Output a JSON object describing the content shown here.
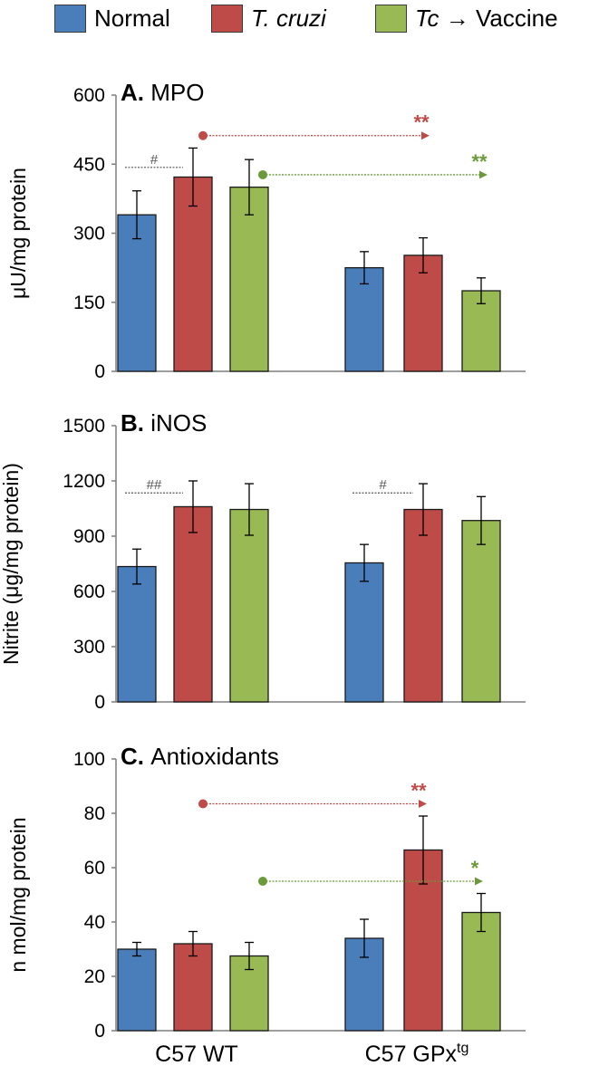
{
  "legend": [
    {
      "label": "Normal",
      "color": "#4a7ebb",
      "italic": false
    },
    {
      "label": "T. cruzi",
      "color": "#be4b48",
      "italic": true
    },
    {
      "label_italic": "Tc",
      "label_arrow": "→",
      "label_rest": "Vaccine",
      "color": "#98b954"
    }
  ],
  "groups": [
    "C57 WT",
    "C57 GPx"
  ],
  "group_superscript": "tg",
  "chart_data": [
    {
      "type": "bar",
      "panel_letter": "A.",
      "title": "MPO",
      "ylabel": "μU/mg protein",
      "ylim": [
        0,
        600
      ],
      "yticks": [
        0,
        150,
        300,
        450,
        600
      ],
      "grid": false,
      "categories": [
        "C57 WT",
        "C57 GPx"
      ],
      "series": [
        {
          "name": "Normal",
          "color": "#4a7ebb",
          "values": [
            340,
            225
          ],
          "errors": [
            52,
            35
          ]
        },
        {
          "name": "T. cruzi",
          "color": "#be4b48",
          "values": [
            422,
            252
          ],
          "errors": [
            63,
            38
          ]
        },
        {
          "name": "Tc → Vaccine",
          "color": "#98b954",
          "values": [
            400,
            175
          ],
          "errors": [
            60,
            28
          ]
        }
      ],
      "annotations": [
        {
          "label": "#",
          "type": "bracket",
          "from": {
            "series": 0,
            "group": 0
          },
          "to": {
            "series": 1,
            "group": 0
          },
          "y": 443,
          "color": "#555555"
        },
        {
          "label": "**",
          "type": "arrow",
          "from": {
            "series": 1,
            "group": 0
          },
          "to": {
            "series": 1,
            "group": 1
          },
          "y": 512,
          "color": "#be4b48"
        },
        {
          "label": "**",
          "type": "arrow",
          "from": {
            "series": 2,
            "group": 0
          },
          "to": {
            "series": 2,
            "group": 1
          },
          "y": 427,
          "color": "#6c9a3a"
        }
      ]
    },
    {
      "type": "bar",
      "panel_letter": "B.",
      "title": "iNOS",
      "ylabel": "Nitrite (μg/mg protein)",
      "ylim": [
        0,
        1500
      ],
      "yticks": [
        0,
        300,
        600,
        900,
        1200,
        1500
      ],
      "grid": false,
      "categories": [
        "C57 WT",
        "C57 GPx"
      ],
      "series": [
        {
          "name": "Normal",
          "color": "#4a7ebb",
          "values": [
            735,
            755
          ],
          "errors": [
            95,
            100
          ]
        },
        {
          "name": "T. cruzi",
          "color": "#be4b48",
          "values": [
            1060,
            1045
          ],
          "errors": [
            140,
            140
          ]
        },
        {
          "name": "Tc → Vaccine",
          "color": "#98b954",
          "values": [
            1045,
            985
          ],
          "errors": [
            140,
            130
          ]
        }
      ],
      "annotations": [
        {
          "label": "##",
          "type": "bracket",
          "from": {
            "series": 0,
            "group": 0
          },
          "to": {
            "series": 1,
            "group": 0
          },
          "y": 1135,
          "color": "#555555"
        },
        {
          "label": "#",
          "type": "bracket",
          "from": {
            "series": 0,
            "group": 1
          },
          "to": {
            "series": 1,
            "group": 1
          },
          "y": 1135,
          "color": "#555555"
        }
      ]
    },
    {
      "type": "bar",
      "panel_letter": "C.",
      "title": "Antioxidants",
      "ylabel": "n mol/mg protein",
      "ylim": [
        0,
        100
      ],
      "yticks": [
        0,
        20,
        40,
        60,
        80,
        100
      ],
      "grid": false,
      "categories": [
        "C57 WT",
        "C57 GPx"
      ],
      "series": [
        {
          "name": "Normal",
          "color": "#4a7ebb",
          "values": [
            30,
            34
          ],
          "errors": [
            2.5,
            7
          ]
        },
        {
          "name": "T. cruzi",
          "color": "#be4b48",
          "values": [
            32,
            66.5
          ],
          "errors": [
            4.5,
            12.5
          ]
        },
        {
          "name": "Tc → Vaccine",
          "color": "#98b954",
          "values": [
            27.5,
            43.5
          ],
          "errors": [
            5,
            7
          ]
        }
      ],
      "annotations": [
        {
          "label": "**",
          "type": "arrow",
          "from": {
            "series": 1,
            "group": 0
          },
          "to": {
            "series": 1,
            "group": 1
          },
          "y": 83.5,
          "color": "#be4b48"
        },
        {
          "label": "*",
          "type": "arrow",
          "from": {
            "series": 2,
            "group": 0
          },
          "to": {
            "series": 2,
            "group": 1
          },
          "y": 55,
          "color": "#6c9a3a"
        }
      ]
    }
  ]
}
